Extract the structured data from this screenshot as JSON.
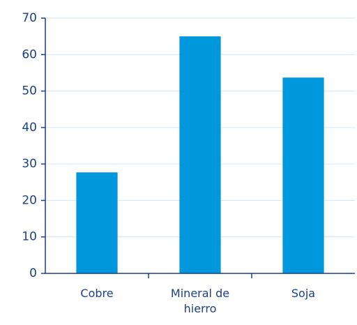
{
  "chart_data": {
    "type": "bar",
    "categories": [
      "Cobre",
      "Mineral de hierro",
      "Soja"
    ],
    "values": [
      27.7,
      65,
      53.7
    ],
    "color": "#0098dc",
    "ylim": [
      0,
      70
    ],
    "yticks": [
      0,
      10,
      20,
      30,
      40,
      50,
      60,
      70
    ],
    "grid": true
  }
}
